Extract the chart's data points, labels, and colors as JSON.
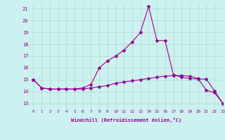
{
  "xlabel": "Windchill (Refroidissement éolien,°C)",
  "ylabel": "",
  "xlim": [
    -0.5,
    23
  ],
  "ylim": [
    12.5,
    21.5
  ],
  "xtick_labels": [
    "0",
    "1",
    "2",
    "3",
    "4",
    "5",
    "6",
    "7",
    "8",
    "9",
    "10",
    "11",
    "12",
    "13",
    "14",
    "15",
    "16",
    "17",
    "18",
    "19",
    "20",
    "21",
    "22",
    "23"
  ],
  "ytick_labels": [
    "13",
    "14",
    "15",
    "16",
    "17",
    "18",
    "19",
    "20",
    "21"
  ],
  "ytick_values": [
    13,
    14,
    15,
    16,
    17,
    18,
    19,
    20,
    21
  ],
  "background_color": "#cdf0f0",
  "line_color": "#990099",
  "grid_color": "#aaddcc",
  "series1_x": [
    0,
    1,
    2,
    3,
    4,
    5,
    6,
    7,
    8,
    9,
    10,
    11,
    12,
    13,
    14,
    15,
    16,
    17,
    18,
    19,
    20,
    21,
    22,
    23
  ],
  "series1_y": [
    15.0,
    14.3,
    14.2,
    14.2,
    14.2,
    14.2,
    14.2,
    14.3,
    14.4,
    14.5,
    14.7,
    14.8,
    14.9,
    15.0,
    15.1,
    15.2,
    15.3,
    15.35,
    15.35,
    15.3,
    15.1,
    14.1,
    13.9,
    13.0
  ],
  "series2_x": [
    0,
    1,
    2,
    3,
    4,
    5,
    6,
    7,
    8,
    9,
    10,
    11,
    12,
    13,
    14,
    15,
    16,
    17,
    18,
    19,
    20,
    21,
    22,
    23
  ],
  "series2_y": [
    15.0,
    14.3,
    14.2,
    14.2,
    14.2,
    14.2,
    14.3,
    14.6,
    16.0,
    16.6,
    17.0,
    17.5,
    18.2,
    19.0,
    21.2,
    18.3,
    18.3,
    15.4,
    15.2,
    15.1,
    15.05,
    15.05,
    14.05,
    13.0
  ],
  "marker": "*",
  "marker_size": 3,
  "linewidth": 0.8
}
